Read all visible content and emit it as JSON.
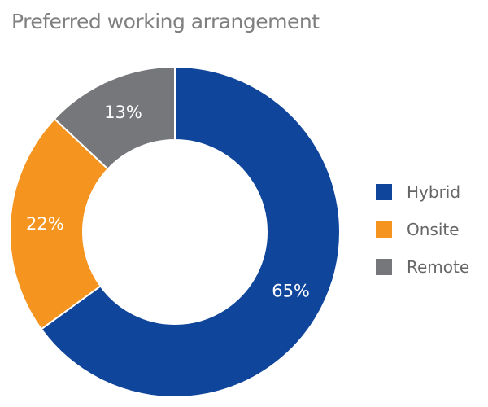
{
  "chart_data": {
    "type": "pie",
    "title": "Preferred working arrangement",
    "donut": true,
    "categories": [
      "Hybrid",
      "Onsite",
      "Remote"
    ],
    "values": [
      65,
      22,
      13
    ],
    "labels": [
      "65%",
      "22%",
      "13%"
    ],
    "colors": [
      "#0f459b",
      "#f5941f",
      "#76777a"
    ],
    "legend": "right"
  }
}
